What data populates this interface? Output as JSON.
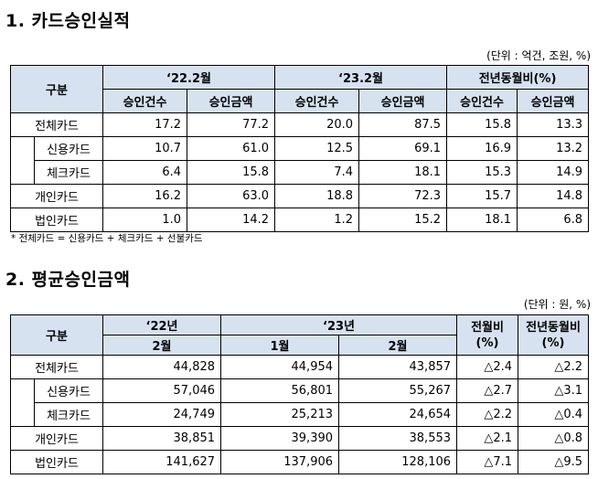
{
  "section1": {
    "title": "1. 카드승인실적",
    "unit": "(단위 : 억건, 조원, %)",
    "header": {
      "category": "구분",
      "period1": "‘22.2월",
      "period2": "‘23.2월",
      "period3": "전년동월비(%)",
      "count": "승인건수",
      "amount": "승인금액"
    },
    "rows": [
      {
        "label": "전체카드",
        "v": [
          "17.2",
          "77.2",
          "20.0",
          "87.5",
          "15.8",
          "13.3"
        ]
      },
      {
        "label": "신용카드",
        "v": [
          "10.7",
          "61.0",
          "12.5",
          "69.1",
          "16.9",
          "13.2"
        ]
      },
      {
        "label": "체크카드",
        "v": [
          "6.4",
          "15.8",
          "7.4",
          "18.1",
          "15.3",
          "14.9"
        ]
      },
      {
        "label": "개인카드",
        "v": [
          "16.2",
          "63.0",
          "18.8",
          "72.3",
          "15.7",
          "14.8"
        ]
      },
      {
        "label": "법인카드",
        "v": [
          "1.0",
          "14.2",
          "1.2",
          "15.2",
          "18.1",
          "6.8"
        ]
      }
    ],
    "note": "* 전체카드 = 신용카드 + 체크카드 + 선불카드"
  },
  "section2": {
    "title": "2. 평균승인금액",
    "unit": "(단위 : 원, %)",
    "header": {
      "category": "구분",
      "year1": "‘22년",
      "year2": "‘23년",
      "mom": "전월비\n(%)",
      "yoy": "전년동월비\n(%)",
      "m1": "2월",
      "m2": "1월",
      "m3": "2월"
    },
    "rows": [
      {
        "label": "전체카드",
        "v": [
          "44,828",
          "44,954",
          "43,857",
          "△2.4",
          "△2.2"
        ]
      },
      {
        "label": "신용카드",
        "v": [
          "57,046",
          "56,801",
          "55,267",
          "△2.7",
          "△3.1"
        ]
      },
      {
        "label": "체크카드",
        "v": [
          "24,749",
          "25,213",
          "24,654",
          "△2.2",
          "△0.4"
        ]
      },
      {
        "label": "개인카드",
        "v": [
          "38,851",
          "39,390",
          "38,553",
          "△2.1",
          "△0.8"
        ]
      },
      {
        "label": "법인카드",
        "v": [
          "141,627",
          "137,906",
          "128,106",
          "△7.1",
          "△9.5"
        ]
      }
    ]
  }
}
